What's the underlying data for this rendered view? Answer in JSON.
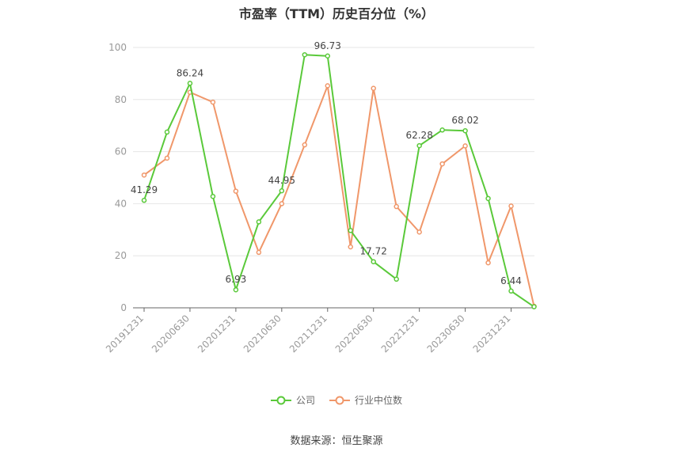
{
  "chart_data": {
    "type": "line",
    "title": "市盈率（TTM）历史百分位（%）",
    "xlabel": "",
    "ylabel": "",
    "ylim": [
      0,
      100
    ],
    "yticks": [
      0,
      20,
      40,
      60,
      80,
      100
    ],
    "x_tick_labels": [
      "20191231",
      "20200630",
      "20201231",
      "20210630",
      "20211231",
      "20220630",
      "20221231",
      "20230630",
      "20231231"
    ],
    "x": [
      "20191231",
      "20200331",
      "20200630",
      "20200930",
      "20201231",
      "20210331",
      "20210630",
      "20210930",
      "20211231",
      "20220331",
      "20220630",
      "20220930",
      "20221231",
      "20230331",
      "20230630",
      "20230930",
      "20231231",
      "20240331"
    ],
    "series": [
      {
        "name": "公司",
        "color": "#5ac93a",
        "values": [
          41.29,
          67.5,
          86.24,
          42.8,
          6.93,
          33.0,
          44.95,
          97.2,
          96.73,
          29.7,
          17.72,
          11.0,
          62.28,
          68.3,
          68.02,
          42.0,
          6.44,
          0.4
        ]
      },
      {
        "name": "行业中位数",
        "color": "#f0976a",
        "values": [
          51.0,
          57.5,
          82.8,
          79.0,
          44.8,
          21.3,
          40.0,
          62.6,
          85.3,
          23.4,
          84.3,
          38.9,
          29.1,
          55.3,
          62.2,
          17.3,
          39.1,
          0.6
        ]
      }
    ],
    "data_labels": [
      {
        "index": 0,
        "text": "41.29"
      },
      {
        "index": 2,
        "text": "86.24"
      },
      {
        "index": 4,
        "text": "6.93"
      },
      {
        "index": 6,
        "text": "44.95"
      },
      {
        "index": 8,
        "text": "96.73"
      },
      {
        "index": 10,
        "text": "17.72"
      },
      {
        "index": 12,
        "text": "62.28"
      },
      {
        "index": 14,
        "text": "68.02"
      },
      {
        "index": 16,
        "text": "6.44"
      }
    ],
    "grid": true,
    "legend_position": "bottom-center"
  },
  "legend": {
    "company": "公司",
    "industry": "行业中位数"
  },
  "source": "数据来源：恒生聚源"
}
